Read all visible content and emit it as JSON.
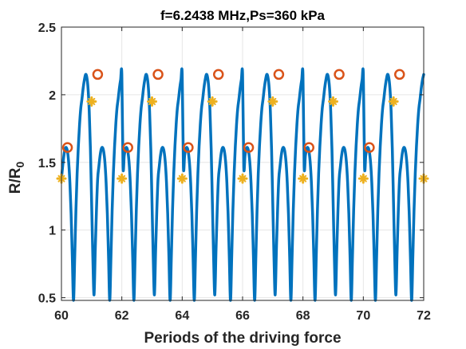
{
  "chart_data": {
    "type": "line",
    "title": "f=6.2438 MHz,Ps=360 kPa",
    "xlabel": "Periods of the driving force",
    "ylabel_main": "R/R",
    "ylabel_sub": "0",
    "xlim": [
      60,
      72
    ],
    "ylim": [
      0.48,
      2.5
    ],
    "xticks": [
      60,
      62,
      64,
      66,
      68,
      70,
      72
    ],
    "yticks": [
      0.5,
      1,
      1.5,
      2,
      2.5
    ],
    "xtick_labels": [
      "60",
      "62",
      "64",
      "66",
      "68",
      "70",
      "72"
    ],
    "ytick_labels": [
      "0.5",
      "1",
      "1.5",
      "2",
      "2.5"
    ],
    "grid": true,
    "period_pattern": {
      "x": [
        0.0,
        0.04,
        0.08,
        0.12,
        0.16,
        0.2,
        0.24,
        0.28,
        0.32,
        0.36,
        0.4,
        0.44,
        0.48,
        0.52,
        0.56,
        0.6,
        0.64,
        0.68,
        0.72,
        0.76,
        0.8,
        0.84,
        0.88,
        0.92,
        0.96,
        1.0,
        1.04,
        1.08,
        1.12,
        1.16,
        1.2,
        1.24,
        1.28,
        1.32,
        1.36,
        1.4,
        1.44,
        1.48,
        1.52,
        1.56,
        1.6,
        1.64,
        1.68,
        1.72,
        1.76,
        1.8,
        1.84,
        1.88,
        1.92,
        1.96,
        2.0
      ],
      "y": [
        1.38,
        1.47,
        1.55,
        1.6,
        1.61,
        1.58,
        1.5,
        1.35,
        1.12,
        0.8,
        0.48,
        0.8,
        1.15,
        1.42,
        1.62,
        1.78,
        1.9,
        1.97,
        2.05,
        2.11,
        2.15,
        2.13,
        2.05,
        1.88,
        1.6,
        1.2,
        0.8,
        0.52,
        0.85,
        1.15,
        1.38,
        1.47,
        1.55,
        1.6,
        1.61,
        1.58,
        1.5,
        1.35,
        1.12,
        0.8,
        0.48,
        0.8,
        1.15,
        1.42,
        1.62,
        1.78,
        1.9,
        1.97,
        2.05,
        2.11,
        2.15
      ]
    },
    "series": [
      {
        "type": "line",
        "color": "#0072BD",
        "description_values": "R/R0 oscillation repeating every 2 periods"
      },
      {
        "type": "scatter",
        "marker": "open-circle",
        "color": "#D95319",
        "points": [
          [
            60.2,
            1.61
          ],
          [
            61.2,
            2.15
          ],
          [
            62.2,
            1.61
          ],
          [
            63.2,
            2.15
          ],
          [
            64.2,
            1.61
          ],
          [
            65.2,
            2.15
          ],
          [
            66.2,
            1.61
          ],
          [
            67.2,
            2.15
          ],
          [
            68.2,
            1.61
          ],
          [
            69.2,
            2.15
          ],
          [
            70.2,
            1.61
          ],
          [
            71.2,
            2.15
          ]
        ]
      },
      {
        "type": "scatter",
        "marker": "star",
        "color": "#EDB120",
        "points": [
          [
            60.0,
            1.38
          ],
          [
            61.0,
            1.95
          ],
          [
            62.0,
            1.38
          ],
          [
            63.0,
            1.95
          ],
          [
            64.0,
            1.38
          ],
          [
            65.0,
            1.95
          ],
          [
            66.0,
            1.38
          ],
          [
            67.0,
            1.95
          ],
          [
            68.0,
            1.38
          ],
          [
            69.0,
            1.95
          ],
          [
            70.0,
            1.38
          ],
          [
            71.0,
            1.95
          ],
          [
            72.0,
            1.38
          ]
        ]
      }
    ]
  }
}
